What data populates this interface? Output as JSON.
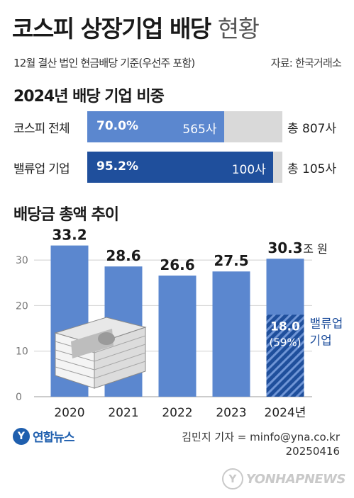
{
  "header": {
    "title_main": "코스피 상장기업 배당",
    "title_light": "현황",
    "subtitle": "12월 결산 법인 현금배당 기준(우선주 포함)",
    "source": "자료: 한국거래소"
  },
  "section1": {
    "title": "2024년 배당 기업 비중",
    "rows": [
      {
        "label": "코스피 전체",
        "value_text": "70.0%",
        "value": 70.0,
        "count": "565사",
        "total": "총 807사",
        "color": "#5b87cf"
      },
      {
        "label": "밸류업 기업",
        "value_text": "95.2%",
        "value": 95.2,
        "count": "100사",
        "total": "총 105사",
        "color": "#1f4f9c"
      }
    ]
  },
  "section2": {
    "title": "배당금 총액 추이"
  },
  "chart_data": {
    "type": "bar",
    "title": "배당금 총액 추이",
    "categories": [
      "2020",
      "2021",
      "2022",
      "2023",
      "2024년"
    ],
    "values": [
      33.2,
      28.6,
      26.6,
      27.5,
      30.3
    ],
    "value_labels": [
      "33.2",
      "28.6",
      "26.6",
      "27.5",
      "30.3"
    ],
    "unit": "조 원",
    "ylim": [
      0,
      35
    ],
    "yticks": [
      0,
      10,
      20,
      30
    ],
    "grid": true,
    "bar_color": "#5b87cf",
    "highlight": {
      "category": "2024년",
      "value": 18.0,
      "value_label": "18.0",
      "share_label": "(59%)",
      "name_line1": "밸류업",
      "name_line2": "기업",
      "color": "#1f4f9c"
    }
  },
  "footer": {
    "logo_text": "연합뉴스",
    "logo_mark": "Y",
    "credit": "김민지 기자 = minfo@yna.co.kr",
    "date": "20250416",
    "watermark": "YONHAPNEWS"
  }
}
